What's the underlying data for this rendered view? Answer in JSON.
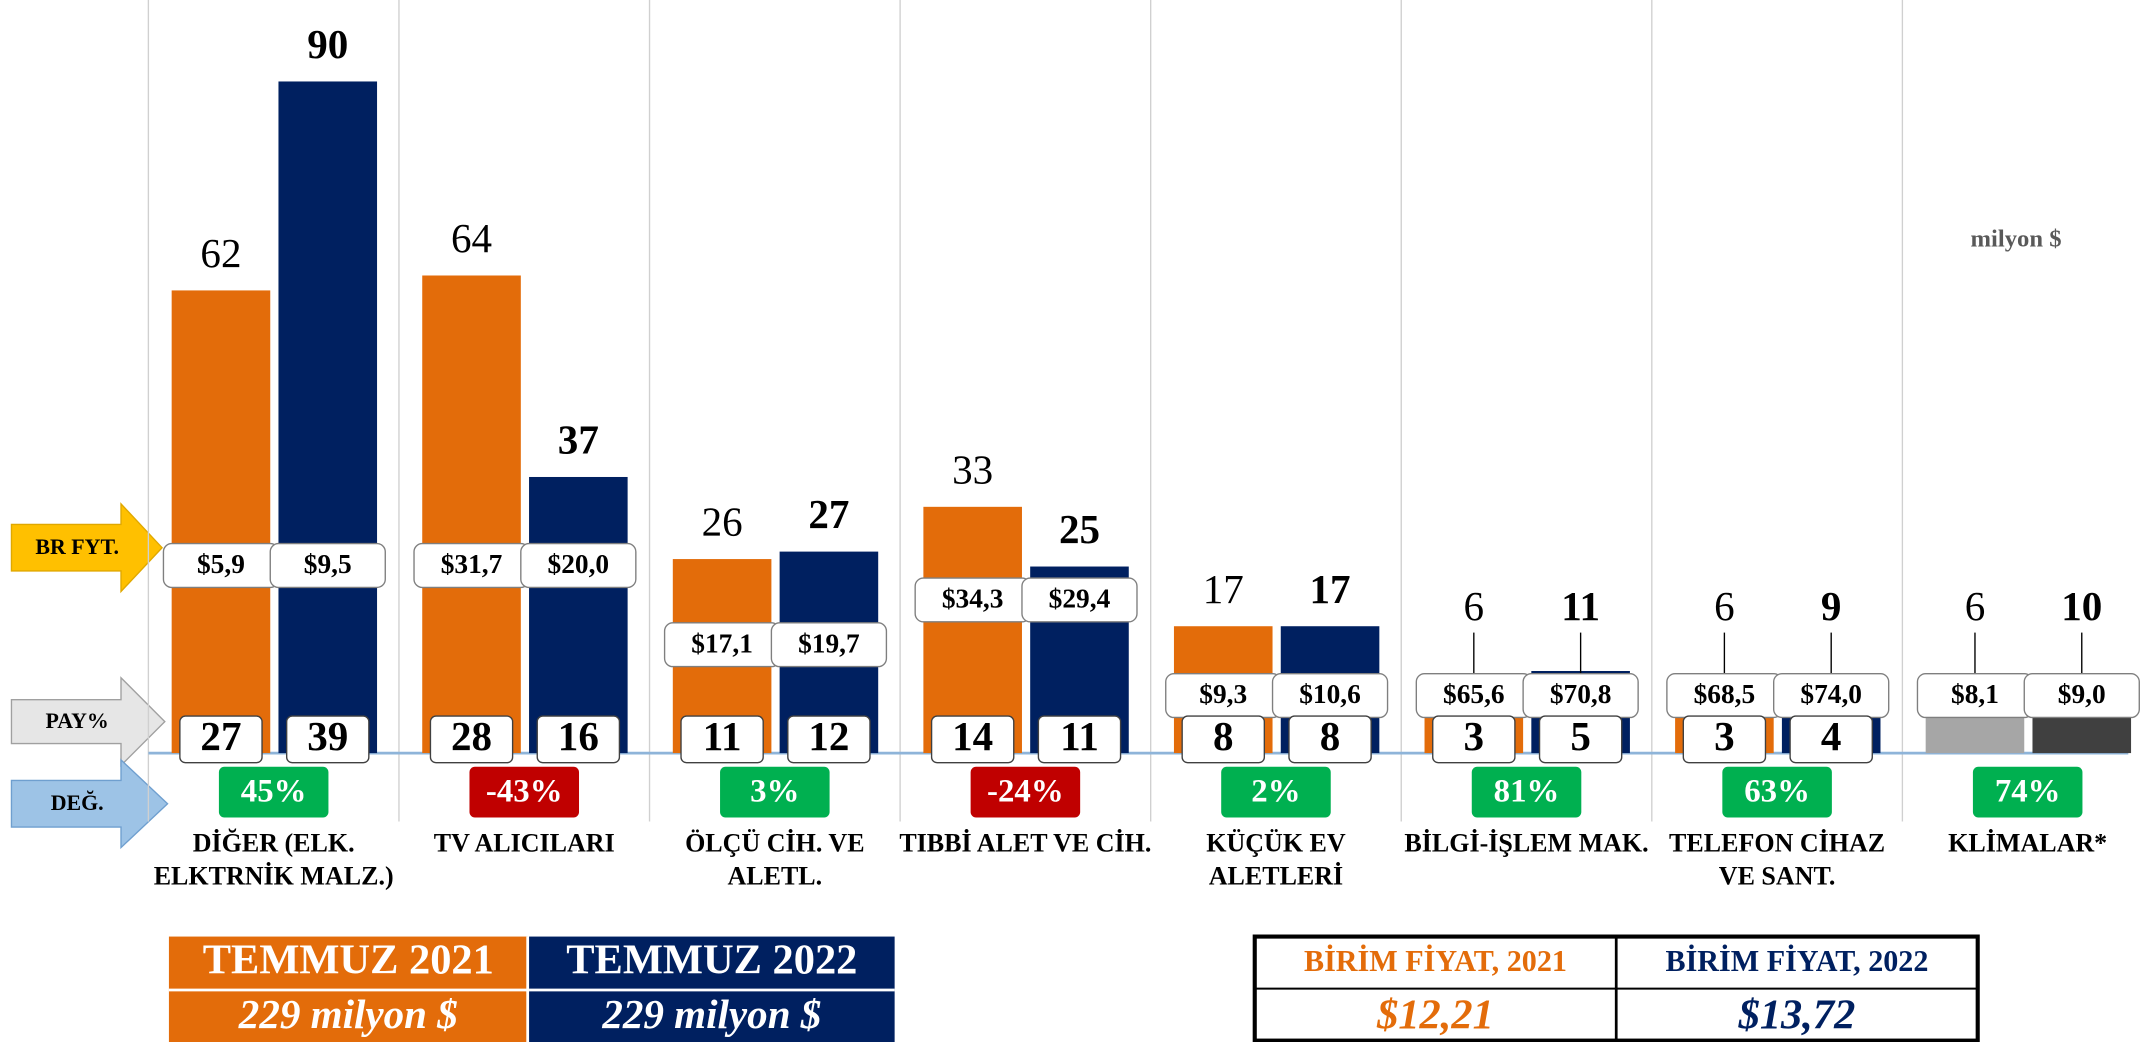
{
  "chart_data": {
    "type": "bar",
    "unit_label": "milyon $",
    "ylim": [
      0,
      100
    ],
    "row_labels": {
      "unit_price": "BR FYT.",
      "share": "PAY%",
      "change": "DEĞ."
    },
    "categories": [
      "DİĞER (ELK. ELKTRNİK MALZ.)",
      "TV ALICILARI",
      "ÖLÇÜ CİH. VE ALETL.",
      "TIBBİ ALET VE CİH.",
      "KÜÇÜK EV ALETLERİ",
      "BİLGİ-İŞLEM MAK.",
      "TELEFON CİHAZ VE SANT.",
      "KLİMALAR*"
    ],
    "series": [
      {
        "name": "TEMMUZ 2021",
        "total": "229 milyon $",
        "color": "#e36c0a",
        "colors": [
          "#e36c0a",
          "#e36c0a",
          "#e36c0a",
          "#e36c0a",
          "#e36c0a",
          "#e36c0a",
          "#e36c0a",
          "#a6a6a6"
        ],
        "values": [
          62,
          64,
          26,
          33,
          17,
          6,
          6,
          6
        ],
        "unit_prices": [
          "$5,9",
          "$31,7",
          "$17,1",
          "$34,3",
          "$9,3",
          "$65,6",
          "$68,5",
          "$8,1"
        ],
        "shares": [
          27,
          28,
          11,
          14,
          8,
          3,
          3,
          null
        ],
        "average_unit_price": {
          "label": "BİRİM FİYAT, 2021",
          "value": "$12,21"
        }
      },
      {
        "name": "TEMMUZ 2022",
        "total": "229 milyon $",
        "color": "#002060",
        "colors": [
          "#002060",
          "#002060",
          "#002060",
          "#002060",
          "#002060",
          "#002060",
          "#002060",
          "#404040"
        ],
        "values": [
          90,
          37,
          27,
          25,
          17,
          11,
          9,
          10
        ],
        "unit_prices": [
          "$9,5",
          "$20,0",
          "$19,7",
          "$29,4",
          "$10,6",
          "$70,8",
          "$74,0",
          "$9,0"
        ],
        "shares": [
          39,
          16,
          12,
          11,
          8,
          5,
          4,
          null
        ],
        "average_unit_price": {
          "label": "BİRİM FİYAT, 2022",
          "value": "$13,72"
        }
      }
    ],
    "change": [
      45,
      -43,
      3,
      -24,
      2,
      81,
      63,
      74
    ],
    "change_labels": [
      "45%",
      "-43%",
      "3%",
      "-24%",
      "2%",
      "81%",
      "63%",
      "74%"
    ],
    "change_colors": {
      "positive": "#00b050",
      "negative": "#c00000"
    }
  }
}
